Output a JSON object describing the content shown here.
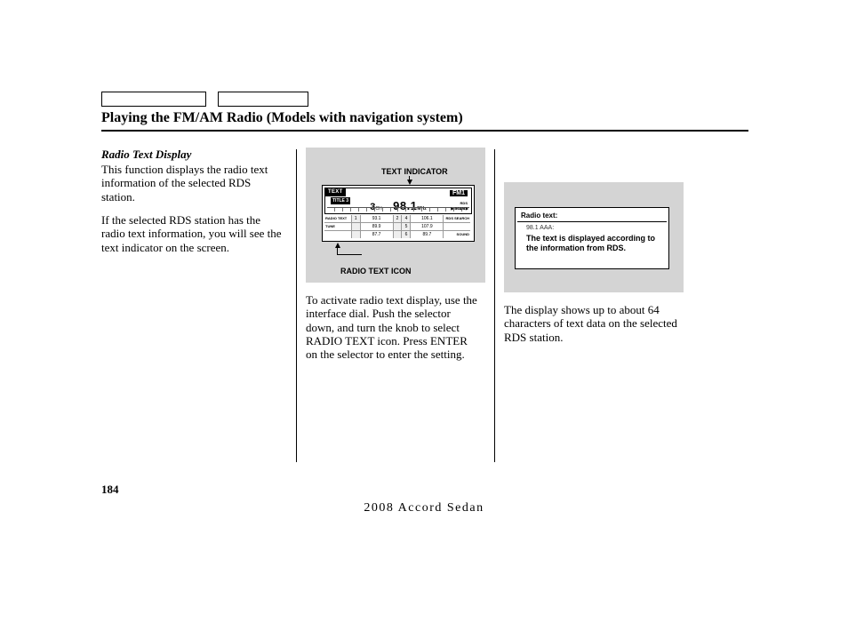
{
  "title": "Playing the FM/AM Radio (Models with navigation system)",
  "left": {
    "subhead": "Radio Text Display",
    "p1": "This function displays the radio text information of the selected RDS station.",
    "p2": "If the selected RDS station has the radio text information, you will see the text indicator on the screen."
  },
  "mid": {
    "label_text_indicator": "TEXT INDICATOR",
    "label_radio_text_icon": "RADIO TEXT ICON",
    "radio": {
      "top_left": "TEXT",
      "fm1": "FM1",
      "title2": "TITLE 3",
      "ch": "3",
      "ch_sub": "CH",
      "freq": "98.1",
      "freq_unit": "MHz",
      "rds": "RDS",
      "auto": "AUTO ST",
      "scan": "▶ SCAN ▶",
      "presets": {
        "row1_label": "RADIO TEXT",
        "row1": [
          "1",
          "93.1",
          "2",
          "3",
          "4",
          "106.1"
        ],
        "row1_end": "RDS SEARCH",
        "row2_label": "TUNE",
        "row2": [
          "",
          "89.9",
          "",
          "2",
          "5",
          "107.9"
        ],
        "row2_end": "",
        "row3_label": "",
        "row3": [
          "",
          "87.7",
          "",
          "1",
          "6",
          "89.7"
        ],
        "row3_end": "SOUND"
      }
    },
    "para": "To activate radio text display, use the interface dial. Push the selector down, and turn the knob to select RADIO TEXT icon. Press ENTER on the selector to enter the setting."
  },
  "right": {
    "panel": {
      "header": "Radio text:",
      "sub": "98.1 AAA:",
      "body": "The text is displayed according to the information from RDS."
    },
    "para": "The display shows up to about 64 characters of text data on the selected RDS station."
  },
  "page_number": "184",
  "footer": "2008  Accord  Sedan"
}
